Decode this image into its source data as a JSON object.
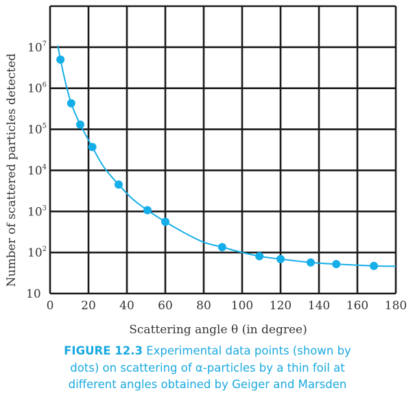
{
  "chart_data": {
    "type": "scatter",
    "xlabel": "Scattering angle  θ (in degree)",
    "ylabel": "Number of  scattered particles detected",
    "xlim": [
      0,
      180
    ],
    "ylim": [
      10,
      100000000
    ],
    "y_scale": "log",
    "grid": true,
    "x_ticks": [
      "0",
      "20",
      "40",
      "60",
      "80",
      "100",
      "120",
      "140",
      "160",
      "180"
    ],
    "y_ticks": [
      {
        "value": 10,
        "base": "10",
        "exp": ""
      },
      {
        "value": 100,
        "base": "10",
        "exp": "2"
      },
      {
        "value": 1000,
        "base": "10",
        "exp": "3"
      },
      {
        "value": 10000,
        "base": "10",
        "exp": "4"
      },
      {
        "value": 100000,
        "base": "10",
        "exp": "5"
      },
      {
        "value": 1000000,
        "base": "10",
        "exp": "6"
      },
      {
        "value": 10000000,
        "base": "10",
        "exp": "7"
      }
    ],
    "points": {
      "x": [
        5.4,
        11,
        15.7,
        22,
        35.7,
        50.7,
        60,
        89.6,
        109,
        120,
        135.7,
        149,
        168.6
      ],
      "y": [
        5000000,
        430000,
        130000,
        37000,
        4500,
        1070,
        560,
        135,
        81,
        69,
        57,
        52,
        47
      ]
    },
    "curve": {
      "x": [
        4,
        5.4,
        8,
        11,
        15.7,
        20,
        22,
        28,
        35.7,
        43,
        50.7,
        60,
        70,
        80,
        89.6,
        100,
        109,
        120,
        135.7,
        149,
        168.6,
        180
      ],
      "y": [
        11000000,
        5000000,
        1400000,
        430000,
        130000,
        55000,
        37000,
        12000,
        4500,
        2000,
        1070,
        560,
        300,
        178,
        135,
        100,
        81,
        69,
        57,
        52,
        47,
        46
      ]
    },
    "colors": {
      "data": "#15aee8",
      "grid": "#1a1a1a",
      "caption": "#1aa9e0"
    }
  },
  "caption": {
    "label": "FIGURE 12.3",
    "line1": " Experimental data points (shown by",
    "line2": "dots) on scattering of α-particles by a thin foil at",
    "line3": "different angles obtained by Geiger and Marsden"
  }
}
